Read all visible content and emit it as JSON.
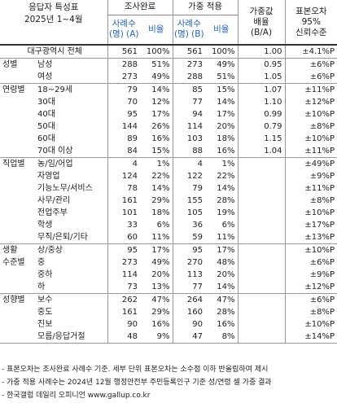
{
  "header": {
    "title": "응답자 특성표",
    "period": "2025년 1~4월",
    "group_survey": "조사완료",
    "group_weighted": "가중 적용",
    "col_cases_a": "사례수\n(명) (A)",
    "col_ratio": "비율",
    "col_cases_b": "사례수\n(명) (B)",
    "col_ratio2": "비율",
    "col_weight": "가중값\n배율\n(B/A)",
    "col_error": "표본오차\n95%\n신뢰수준"
  },
  "sections": [
    {
      "name": "",
      "rows": [
        {
          "label": "대구광역시 전체",
          "a": "561",
          "ar": "100%",
          "b": "561",
          "br": "100%",
          "w": "1.00",
          "e": "±4.1%P"
        }
      ]
    },
    {
      "name": "성별",
      "rows": [
        {
          "label": "남성",
          "a": "288",
          "ar": "51%",
          "b": "273",
          "br": "49%",
          "w": "0.95",
          "e": "±6%P"
        },
        {
          "label": "여성",
          "a": "273",
          "ar": "49%",
          "b": "288",
          "br": "51%",
          "w": "1.05",
          "e": "±6%P"
        }
      ]
    },
    {
      "name": "연령별",
      "rows": [
        {
          "label": "18~29세",
          "a": "79",
          "ar": "14%",
          "b": "85",
          "br": "15%",
          "w": "1.07",
          "e": "±11%P"
        },
        {
          "label": "30대",
          "a": "70",
          "ar": "12%",
          "b": "77",
          "br": "14%",
          "w": "1.10",
          "e": "±12%P"
        },
        {
          "label": "40대",
          "a": "95",
          "ar": "17%",
          "b": "94",
          "br": "17%",
          "w": "0.99",
          "e": "±10%P"
        },
        {
          "label": "50대",
          "a": "144",
          "ar": "26%",
          "b": "114",
          "br": "20%",
          "w": "0.79",
          "e": "±8%P"
        },
        {
          "label": "60대",
          "a": "89",
          "ar": "16%",
          "b": "103",
          "br": "18%",
          "w": "1.15",
          "e": "±10%P"
        },
        {
          "label": "70대 이상",
          "a": "84",
          "ar": "15%",
          "b": "88",
          "br": "16%",
          "w": "1.04",
          "e": "±11%P"
        }
      ]
    },
    {
      "name": "직업별",
      "rows": [
        {
          "label": "농/임/어업",
          "a": "4",
          "ar": "1%",
          "b": "4",
          "br": "1%",
          "w": "",
          "e": "±49%P"
        },
        {
          "label": "자영업",
          "a": "124",
          "ar": "22%",
          "b": "122",
          "br": "22%",
          "w": "",
          "e": "±9%P"
        },
        {
          "label": "기능노무/서비스",
          "a": "78",
          "ar": "14%",
          "b": "79",
          "br": "14%",
          "w": "",
          "e": "±11%P"
        },
        {
          "label": "사무/관리",
          "a": "161",
          "ar": "29%",
          "b": "155",
          "br": "28%",
          "w": "",
          "e": "±8%P"
        },
        {
          "label": "전업주부",
          "a": "101",
          "ar": "18%",
          "b": "105",
          "br": "19%",
          "w": "",
          "e": "±10%P"
        },
        {
          "label": "학생",
          "a": "33",
          "ar": "6%",
          "b": "36",
          "br": "6%",
          "w": "",
          "e": "±17%P"
        },
        {
          "label": "무직/은퇴/기타",
          "a": "60",
          "ar": "11%",
          "b": "59",
          "br": "11%",
          "w": "",
          "e": "±13%P"
        }
      ]
    },
    {
      "name": "생활\n수준별",
      "rows": [
        {
          "label": "상/중상",
          "a": "95",
          "ar": "17%",
          "b": "95",
          "br": "17%",
          "w": "",
          "e": "±10%P"
        },
        {
          "label": "중",
          "a": "273",
          "ar": "49%",
          "b": "270",
          "br": "48%",
          "w": "",
          "e": "±6%P"
        },
        {
          "label": "중하",
          "a": "114",
          "ar": "20%",
          "b": "113",
          "br": "20%",
          "w": "",
          "e": "±9%P"
        },
        {
          "label": "하",
          "a": "73",
          "ar": "13%",
          "b": "77",
          "br": "14%",
          "w": "",
          "e": "±12%P"
        }
      ]
    },
    {
      "name": "성향별",
      "rows": [
        {
          "label": "보수",
          "a": "262",
          "ar": "47%",
          "b": "264",
          "br": "47%",
          "w": "",
          "e": "±6%P"
        },
        {
          "label": "중도",
          "a": "161",
          "ar": "29%",
          "b": "160",
          "br": "28%",
          "w": "",
          "e": "±8%P"
        },
        {
          "label": "진보",
          "a": "90",
          "ar": "16%",
          "b": "90",
          "br": "16%",
          "w": "",
          "e": "±10%P"
        },
        {
          "label": "모름/응답거절",
          "a": "48",
          "ar": "9%",
          "b": "47",
          "br": "8%",
          "w": "",
          "e": "±14%P"
        }
      ]
    }
  ],
  "notes": [
    "- 표본오차는 조사완료 사례수 기준. 세부 단위 표본오차는 소수점 이하 반올림하여 제시",
    "- 가중 적용 사례수는 2024년 12월 행정안전부 주민등록인구 기준 성/연령 셀 가중 결과",
    "- 한국갤럽 데일리 오피니언 www.gallup.co.kr"
  ],
  "colors": {
    "header_blue": "#2565b8",
    "row_shade": "#eef1f8"
  }
}
